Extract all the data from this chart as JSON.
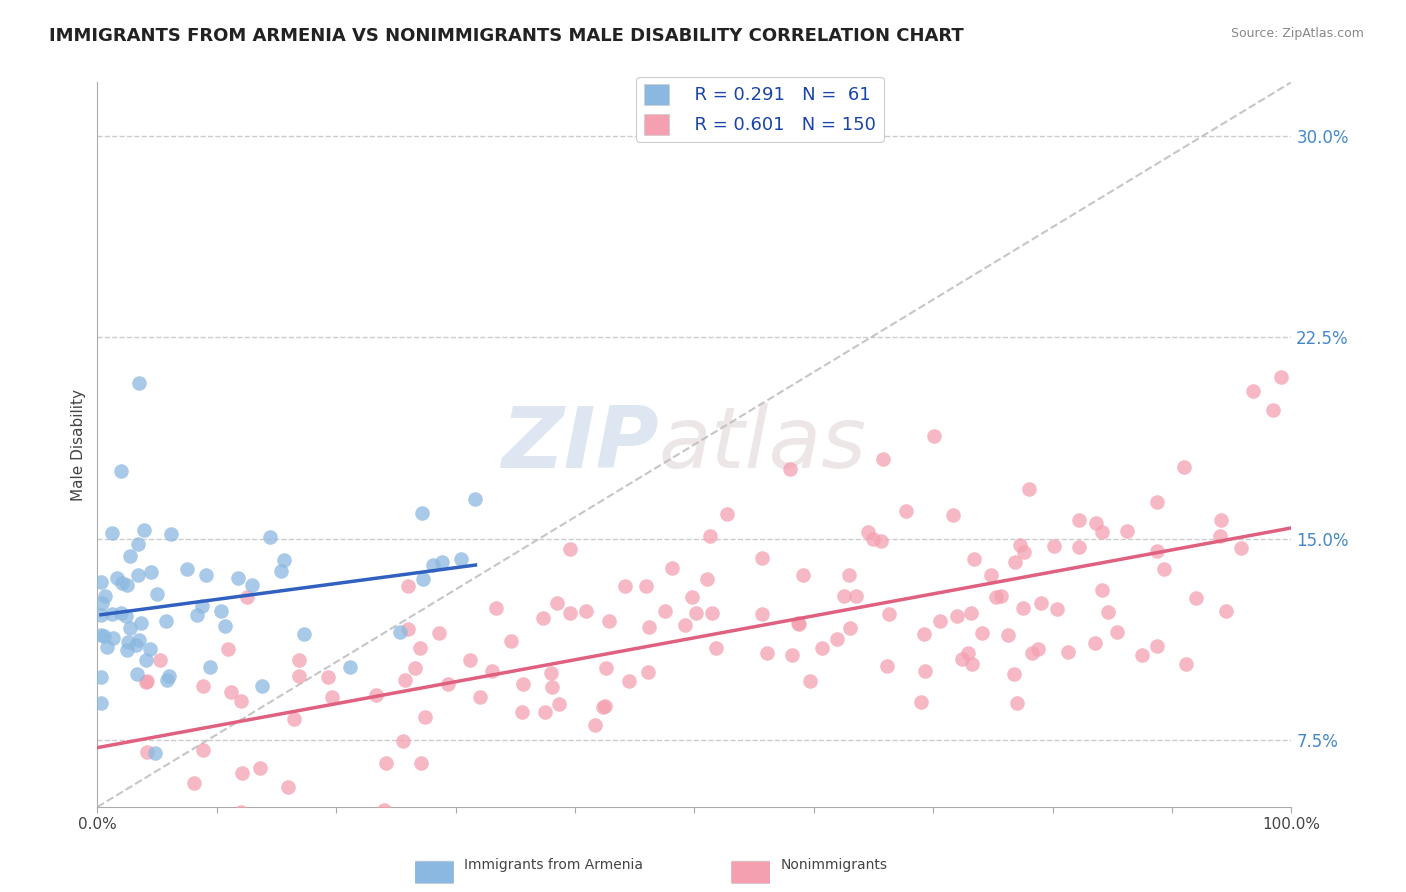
{
  "title": "IMMIGRANTS FROM ARMENIA VS NONIMMIGRANTS MALE DISABILITY CORRELATION CHART",
  "source_text": "Source: ZipAtlas.com",
  "ylabel": "Male Disability",
  "legend_label1": "Immigrants from Armenia",
  "legend_label2": "Nonimmigrants",
  "r1": 0.291,
  "n1": 61,
  "r2": 0.601,
  "n2": 150,
  "xlim": [
    0,
    100
  ],
  "ylim": [
    5.0,
    32.0
  ],
  "yticks_right": [
    7.5,
    15.0,
    22.5,
    30.0
  ],
  "xticks": [
    0,
    10,
    20,
    30,
    40,
    50,
    60,
    70,
    80,
    90,
    100
  ],
  "color_blue": "#8bb8e0",
  "color_pink": "#f4a0b0",
  "color_blue_line": "#3060c0",
  "color_pink_line": "#e06080",
  "color_diag": "#b8b8b8",
  "bg_color": "#ffffff",
  "title_fontsize": 13,
  "axis_fontsize": 11,
  "watermark_zip": "ZIP",
  "watermark_atlas": "atlas"
}
